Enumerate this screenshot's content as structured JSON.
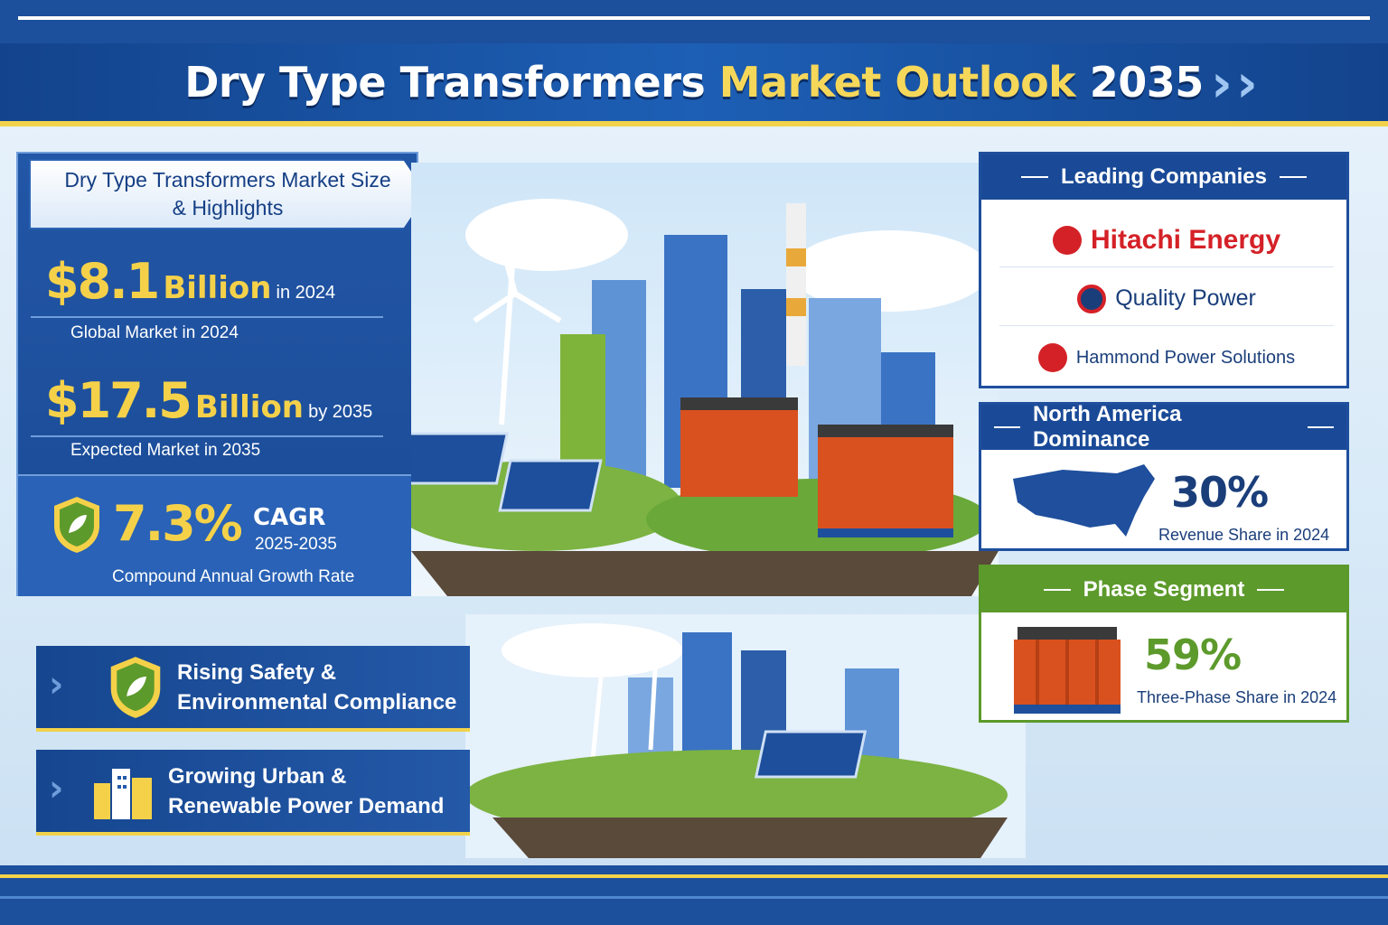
{
  "header": {
    "title_main": "Dry Type Transformers",
    "title_accent": "Market Outlook",
    "title_year": "2035"
  },
  "highlights": {
    "heading_line1": "Dry Type Transformers Market Size",
    "heading_line2": "& Highlights",
    "stat1": {
      "value": "$8.1",
      "unit": "Billion",
      "suffix": "in 2024",
      "caption": "Global Market in 2024"
    },
    "stat2": {
      "value": "$17.5",
      "unit": "Billion",
      "suffix": "by 2035",
      "caption": "Expected Market in 2035"
    },
    "stat3": {
      "value": "7.3%",
      "unit": "CAGR",
      "suffix": "2025-2035",
      "caption": "Compound Annual Growth Rate"
    }
  },
  "companies": {
    "heading": "Leading Companies",
    "items": [
      "Hitachi Energy",
      "Quality Power",
      "Hammond Power Solutions"
    ]
  },
  "north_america": {
    "heading": "North America Dominance",
    "value": "30%",
    "caption": "Revenue Share in 2024"
  },
  "phase": {
    "heading": "Phase Segment",
    "value": "59%",
    "caption": "Three-Phase Share in 2024"
  },
  "drivers": [
    {
      "line1": "Rising Safety &",
      "line2": "Environmental Compliance",
      "icon": "shield-leaf-icon"
    },
    {
      "line1": "Growing Urban &",
      "line2": "Renewable Power Demand",
      "icon": "city-buildings-icon"
    }
  ],
  "colors": {
    "navy": "#1a4a97",
    "gold": "#f5d14a",
    "hitachi_red": "#d42127",
    "green": "#5d9a2c",
    "transformer_orange": "#d9511f"
  }
}
